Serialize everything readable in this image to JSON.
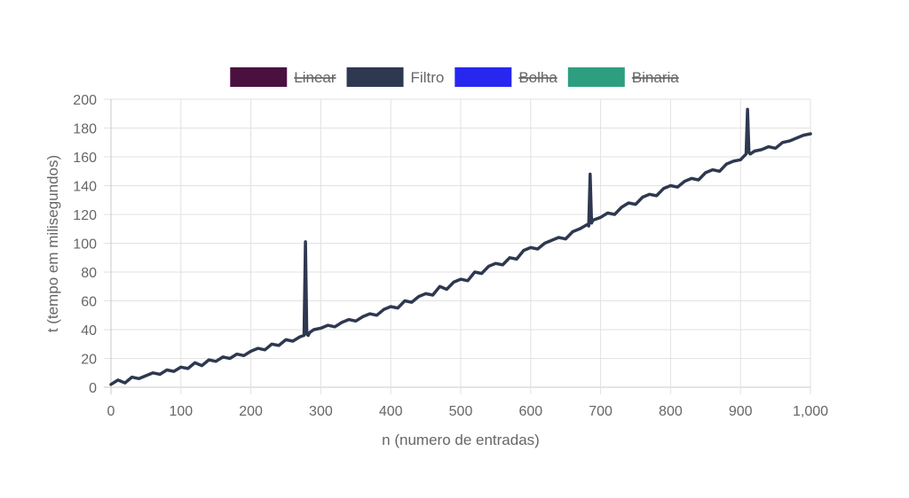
{
  "chart_data": {
    "type": "line",
    "title": "",
    "xlabel": "n (numero de entradas)",
    "ylabel": "t (tempo em milisegundos)",
    "xlim": [
      0,
      1000
    ],
    "ylim": [
      0,
      200
    ],
    "x_ticks": [
      0,
      100,
      200,
      300,
      400,
      500,
      600,
      700,
      800,
      900,
      1000
    ],
    "x_tick_labels": [
      "0",
      "100",
      "200",
      "300",
      "400",
      "500",
      "600",
      "700",
      "800",
      "900",
      "1,000"
    ],
    "y_ticks": [
      0,
      20,
      40,
      60,
      80,
      100,
      120,
      140,
      160,
      180,
      200
    ],
    "y_tick_labels": [
      "0",
      "20",
      "40",
      "60",
      "80",
      "100",
      "120",
      "140",
      "160",
      "180",
      "200"
    ],
    "grid": true,
    "legend_position": "top",
    "series": [
      {
        "name": "Linear",
        "color": "#4a1040",
        "hidden": true,
        "x": [],
        "y": []
      },
      {
        "name": "Filtro",
        "color": "#2e3850",
        "hidden": false,
        "x": [
          0,
          10,
          20,
          30,
          40,
          50,
          60,
          70,
          80,
          90,
          100,
          110,
          120,
          130,
          140,
          150,
          160,
          170,
          180,
          190,
          200,
          210,
          220,
          230,
          240,
          250,
          260,
          270,
          276,
          278,
          280,
          282,
          284,
          290,
          300,
          310,
          320,
          330,
          340,
          350,
          360,
          370,
          380,
          390,
          400,
          410,
          420,
          430,
          440,
          450,
          460,
          470,
          480,
          490,
          500,
          510,
          520,
          530,
          540,
          550,
          560,
          570,
          580,
          590,
          600,
          610,
          620,
          630,
          640,
          650,
          660,
          670,
          681,
          683,
          685,
          687,
          689,
          700,
          710,
          720,
          730,
          740,
          750,
          760,
          770,
          780,
          790,
          800,
          810,
          820,
          830,
          840,
          850,
          860,
          870,
          880,
          890,
          900,
          906,
          908,
          910,
          912,
          914,
          920,
          930,
          940,
          950,
          960,
          970,
          980,
          990,
          1000
        ],
        "y": [
          2,
          5,
          3,
          7,
          6,
          8,
          10,
          9,
          12,
          11,
          14,
          13,
          17,
          15,
          19,
          18,
          21,
          20,
          23,
          22,
          25,
          27,
          26,
          30,
          29,
          33,
          32,
          35,
          36,
          101,
          37,
          36,
          38,
          40,
          41,
          43,
          42,
          45,
          47,
          46,
          49,
          51,
          50,
          54,
          56,
          55,
          60,
          59,
          63,
          65,
          64,
          70,
          68,
          73,
          75,
          74,
          80,
          79,
          84,
          86,
          85,
          90,
          89,
          95,
          97,
          96,
          100,
          102,
          104,
          103,
          108,
          110,
          113,
          112,
          148,
          114,
          116,
          118,
          121,
          120,
          125,
          128,
          127,
          132,
          134,
          133,
          138,
          140,
          139,
          143,
          145,
          144,
          149,
          151,
          150,
          155,
          157,
          158,
          161,
          162,
          193,
          163,
          162,
          164,
          165,
          167,
          166,
          170,
          171,
          173,
          175,
          176
        ]
      },
      {
        "name": "Bolha",
        "color": "#2727f0",
        "hidden": true,
        "x": [],
        "y": []
      },
      {
        "name": "Binaria",
        "color": "#2e9e80",
        "hidden": true,
        "x": [],
        "y": []
      }
    ]
  }
}
